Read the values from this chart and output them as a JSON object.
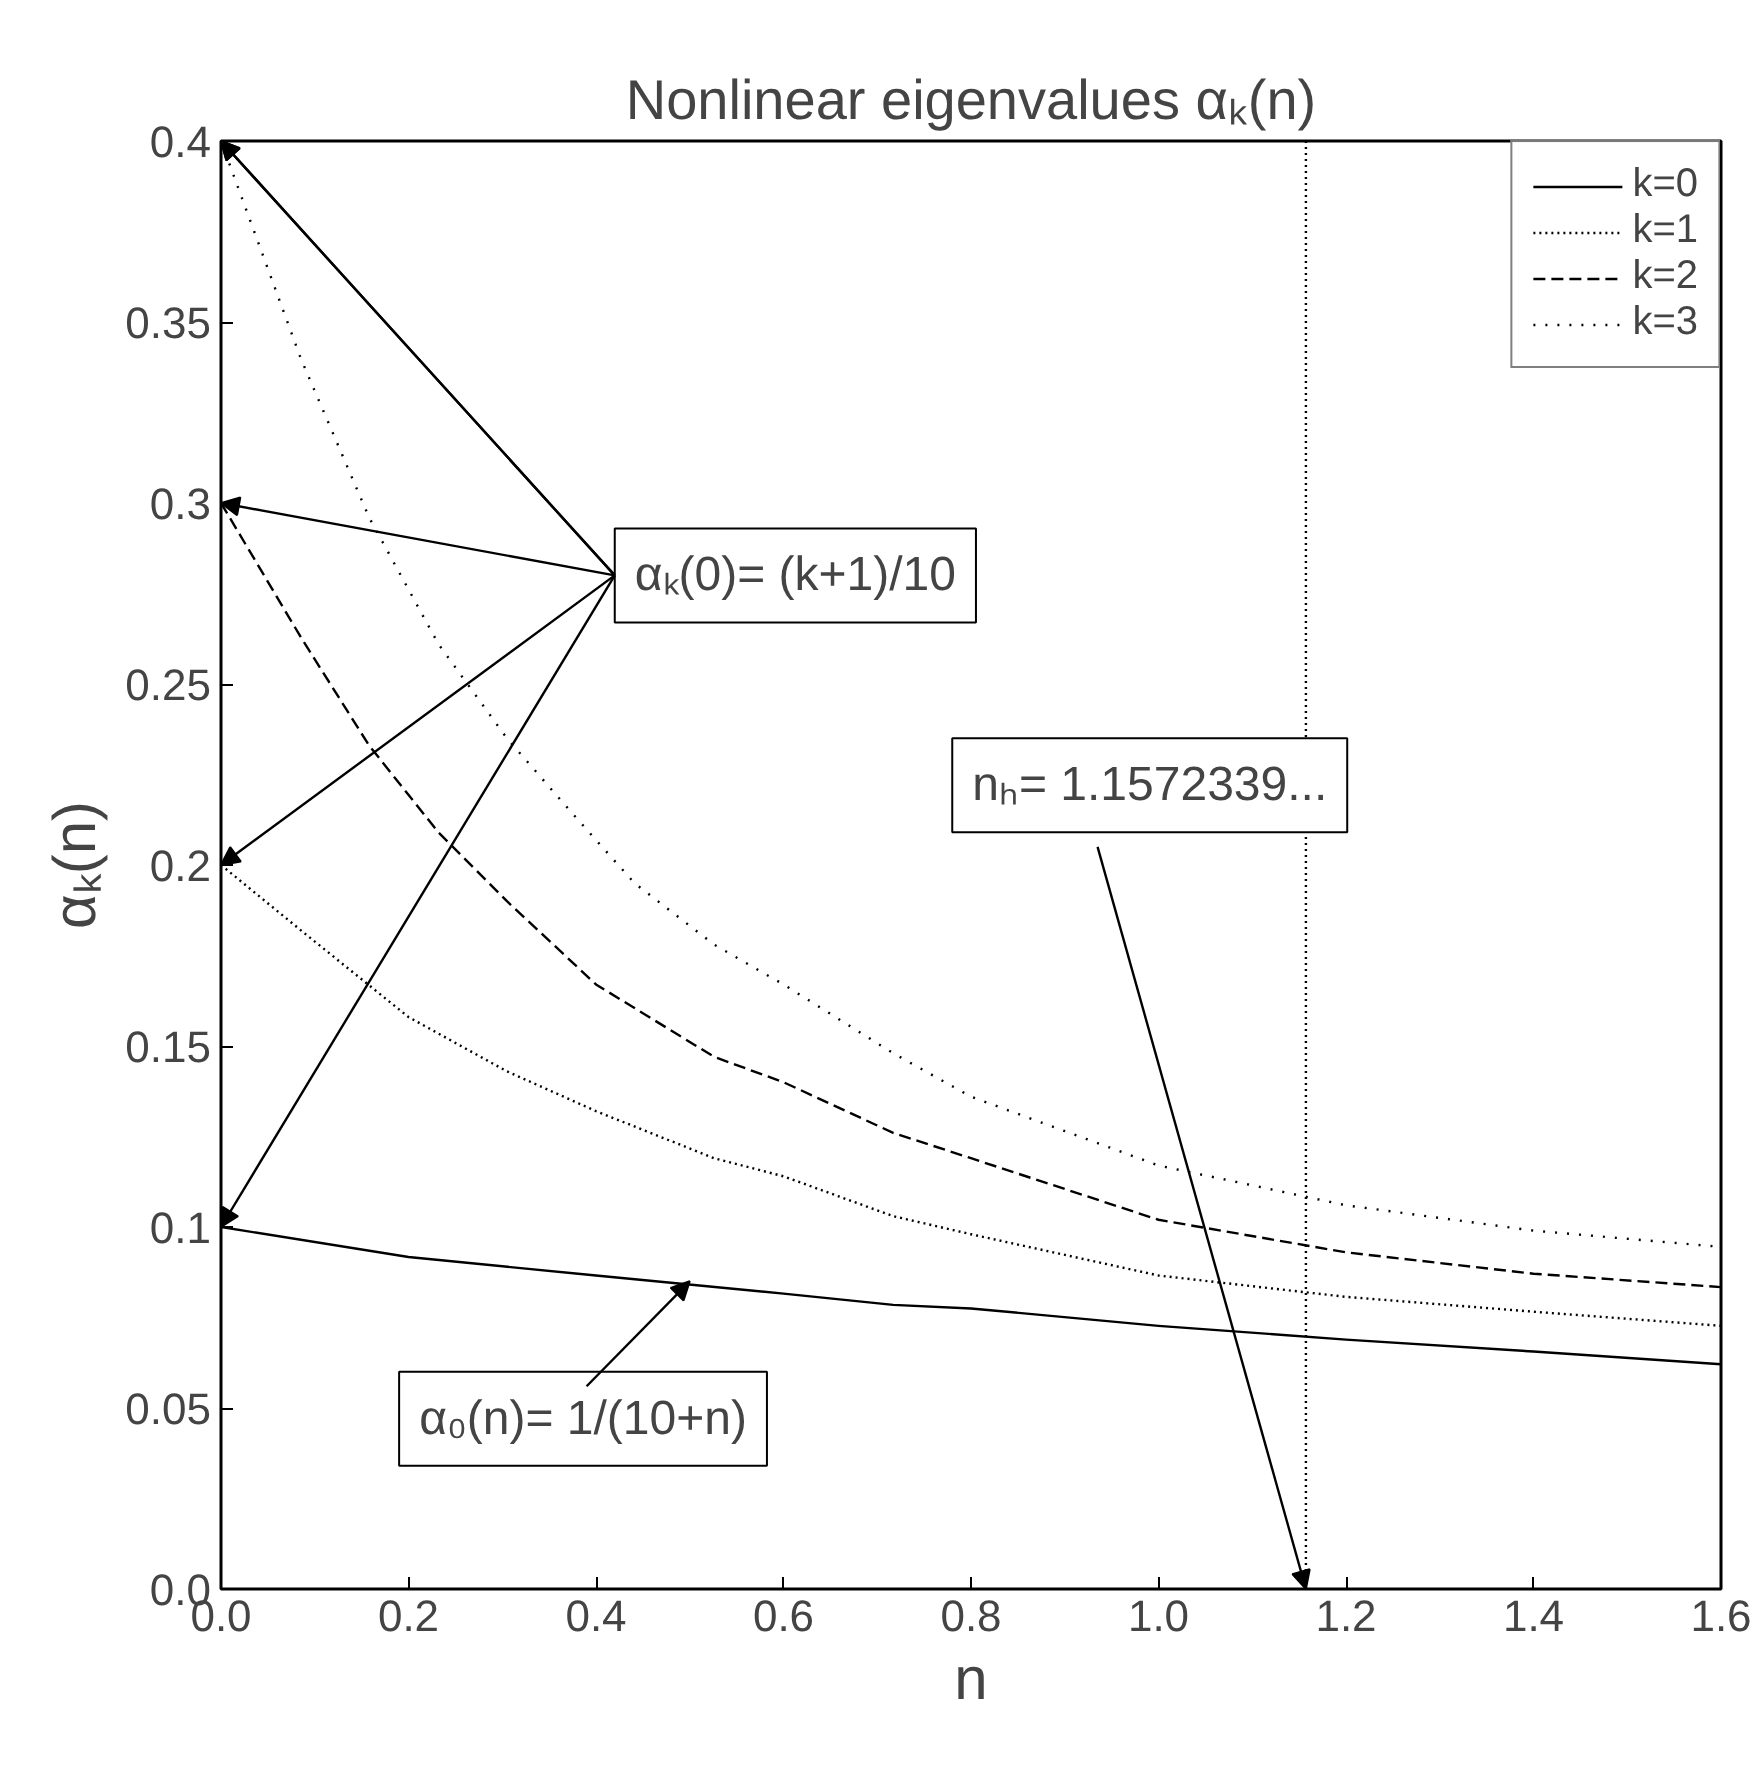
{
  "chart_data": {
    "type": "line",
    "title": "Nonlinear eigenvalues αₖ(n)",
    "xlabel": "n",
    "ylabel": "αₖ(n)",
    "series": [
      {
        "name": "k=0",
        "color": "#000000",
        "line_style": "solid",
        "x": [
          0,
          0.2,
          0.4,
          0.6,
          0.717,
          0.8,
          1.0,
          1.2,
          1.4,
          1.6
        ],
        "values": [
          0.1,
          0.0917,
          0.0866,
          0.0816,
          0.0785,
          0.0775,
          0.0727,
          0.0689,
          0.0656,
          0.0621
        ]
      },
      {
        "name": "k=1",
        "color": "#000000",
        "line_style": "dotted",
        "x": [
          0,
          0.085,
          0.2,
          0.305,
          0.4,
          0.526,
          0.6,
          0.717,
          0.8,
          1.0,
          1.2,
          1.4,
          1.6
        ],
        "values": [
          0.2,
          0.182,
          0.158,
          0.143,
          0.132,
          0.119,
          0.114,
          0.103,
          0.098,
          0.0866,
          0.0807,
          0.0766,
          0.0727
        ]
      },
      {
        "name": "k=2",
        "color": "#000000",
        "line_style": "dashed",
        "x": [
          0,
          0.085,
          0.158,
          0.232,
          0.305,
          0.4,
          0.526,
          0.6,
          0.717,
          0.8,
          1.0,
          1.2,
          1.4,
          1.6
        ],
        "values": [
          0.3,
          0.263,
          0.233,
          0.209,
          0.19,
          0.167,
          0.147,
          0.14,
          0.126,
          0.119,
          0.102,
          0.093,
          0.0871,
          0.0834
        ]
      },
      {
        "name": "k=3",
        "color": "#000000",
        "line_style": "dotted",
        "x": [
          0,
          0.085,
          0.158,
          0.232,
          0.305,
          0.379,
          0.441,
          0.526,
          0.6,
          0.717,
          0.8,
          1.0,
          1.2,
          1.4,
          1.6
        ],
        "values": [
          0.4,
          0.34,
          0.296,
          0.261,
          0.235,
          0.213,
          0.195,
          0.178,
          0.167,
          0.148,
          0.136,
          0.117,
          0.106,
          0.099,
          0.0945
        ]
      }
    ],
    "xlim": [
      0,
      1.6
    ],
    "ylim": [
      0,
      0.4
    ],
    "xticks": [
      {
        "value": 0,
        "label": "0.0"
      },
      0.2,
      0.4,
      0.6,
      0.8,
      {
        "value": 1,
        "label": "1.0"
      },
      1.2,
      1.4,
      1.6
    ],
    "yticks": [
      {
        "value": 0,
        "label": "0.0"
      },
      0.05,
      0.1,
      0.15,
      0.2,
      0.25,
      0.3,
      0.35,
      0.4
    ],
    "ref_lines": [
      {
        "axis": "x",
        "value": 1.1572339,
        "line_style": "dotted",
        "color": "#000000"
      }
    ],
    "annotations": [
      {
        "text": "αₖ(0)= (k+1)/10",
        "x": 0,
        "y": 0.4
      },
      {
        "text": "nₕ= 1.1572339...",
        "x": 1.1572339,
        "y": 0
      },
      {
        "text": "α₀(n)= 1/(10+n)",
        "x": 0.5,
        "y": 0.085
      }
    ],
    "grid": false,
    "legend": "top right"
  }
}
